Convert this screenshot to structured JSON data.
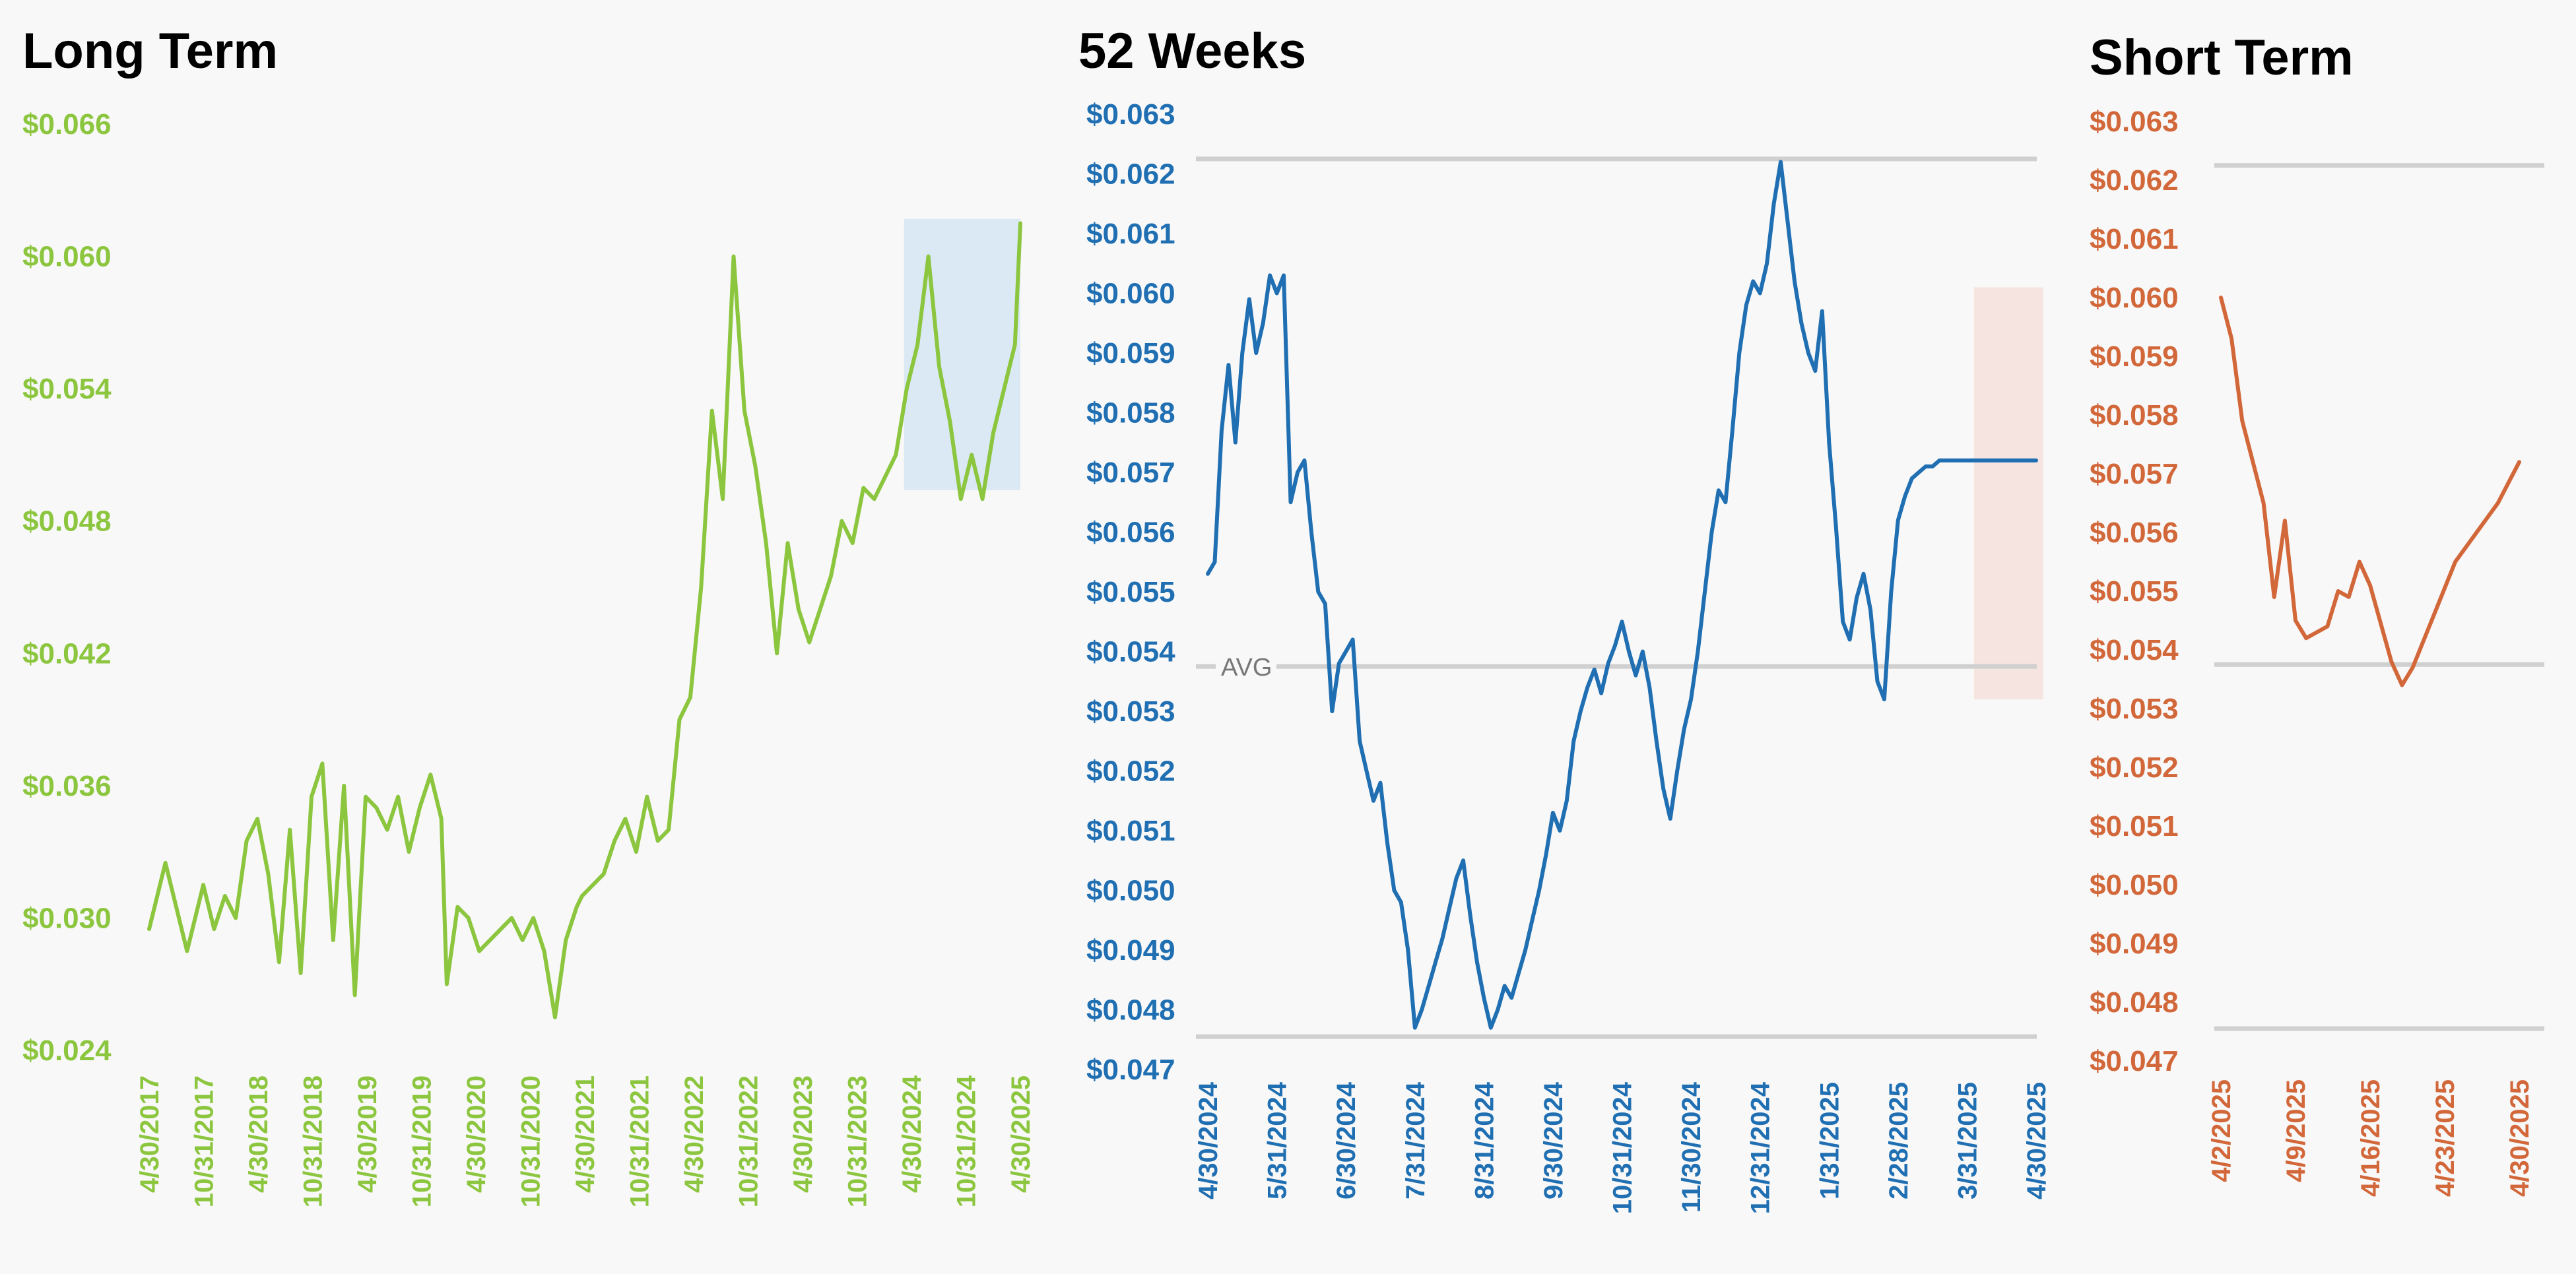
{
  "colors": {
    "long": "#8cc63f",
    "week": "#1f6fb2",
    "short": "#d2673a",
    "gridline": "#d0d0d0",
    "highlight_long": "#dbe9f4",
    "highlight_week": "#f5e4df"
  },
  "chart_data": [
    {
      "type": "line",
      "title": "Long Term",
      "ylim": [
        0.024,
        0.066
      ],
      "yticks": [
        "$0.066",
        "$0.060",
        "$0.054",
        "$0.048",
        "$0.042",
        "$0.036",
        "$0.030",
        "$0.024"
      ],
      "xticks": [
        "4/30/2017",
        "10/31/2017",
        "4/30/2018",
        "10/31/2018",
        "4/30/2019",
        "10/31/2019",
        "4/30/2020",
        "10/31/2020",
        "4/30/2021",
        "10/31/2021",
        "4/30/2022",
        "10/31/2022",
        "4/30/2023",
        "10/31/2023",
        "4/30/2024",
        "10/31/2024",
        "4/30/2025"
      ],
      "x": [
        0,
        0.15,
        0.3,
        0.5,
        0.7,
        1.0,
        1.2,
        1.4,
        1.6,
        1.8,
        2.0,
        2.2,
        2.4,
        2.6,
        2.8,
        3.0,
        3.2,
        3.4,
        3.6,
        3.8,
        4.0,
        4.2,
        4.4,
        4.6,
        4.8,
        5.0,
        5.2,
        5.4,
        5.5,
        5.7,
        5.9,
        6.1,
        6.3,
        6.5,
        6.7,
        6.9,
        7.1,
        7.3,
        7.5,
        7.7,
        7.9,
        8.0,
        8.2,
        8.4,
        8.6,
        8.8,
        9.0,
        9.2,
        9.4,
        9.6,
        9.8,
        10.0,
        10.2,
        10.4,
        10.6,
        10.8,
        11.0,
        11.2,
        11.4,
        11.6,
        11.8,
        12.0,
        12.2,
        12.4,
        12.6,
        12.8,
        13.0,
        13.2,
        13.4,
        13.6,
        13.8,
        14.0,
        14.2,
        14.4,
        14.6,
        14.8,
        15.0,
        15.2,
        15.4,
        15.6,
        15.8,
        16.0,
        16.1
      ],
      "values": [
        0.0295,
        0.031,
        0.0325,
        0.0305,
        0.0285,
        0.0315,
        0.0295,
        0.031,
        0.03,
        0.0335,
        0.0345,
        0.032,
        0.028,
        0.034,
        0.0275,
        0.0355,
        0.037,
        0.029,
        0.036,
        0.0265,
        0.0355,
        0.035,
        0.034,
        0.0355,
        0.033,
        0.035,
        0.0365,
        0.0345,
        0.027,
        0.0305,
        0.03,
        0.0285,
        0.029,
        0.0295,
        0.03,
        0.029,
        0.03,
        0.0285,
        0.0255,
        0.029,
        0.0305,
        0.031,
        0.0315,
        0.032,
        0.0335,
        0.0345,
        0.033,
        0.0355,
        0.0335,
        0.034,
        0.039,
        0.04,
        0.045,
        0.053,
        0.049,
        0.06,
        0.053,
        0.0505,
        0.047,
        0.042,
        0.047,
        0.044,
        0.0425,
        0.044,
        0.0455,
        0.048,
        0.047,
        0.0495,
        0.049,
        0.05,
        0.051,
        0.054,
        0.056,
        0.06,
        0.055,
        0.0525,
        0.049,
        0.051,
        0.049,
        0.052,
        0.054,
        0.056,
        0.0615
      ]
    },
    {
      "type": "line",
      "title": "52 Weeks",
      "ylim": [
        0.047,
        0.063
      ],
      "yticks": [
        "$0.063",
        "$0.062",
        "$0.061",
        "$0.060",
        "$0.059",
        "$0.058",
        "$0.057",
        "$0.056",
        "$0.055",
        "$0.054",
        "$0.053",
        "$0.052",
        "$0.051",
        "$0.050",
        "$0.049",
        "$0.048",
        "$0.047"
      ],
      "xticks": [
        "4/30/2024",
        "5/31/2024",
        "6/30/2024",
        "7/31/2024",
        "8/31/2024",
        "9/30/2024",
        "10/31/2024",
        "11/30/2024",
        "12/31/2024",
        "1/31/2025",
        "2/28/2025",
        "3/31/2025",
        "4/30/2025"
      ],
      "avg_label": "AVG",
      "reference_lines": [
        0.06225,
        0.05375,
        0.04755
      ],
      "x": [
        0,
        0.1,
        0.2,
        0.3,
        0.4,
        0.5,
        0.6,
        0.7,
        0.8,
        0.9,
        1.0,
        1.1,
        1.2,
        1.3,
        1.4,
        1.5,
        1.6,
        1.7,
        1.8,
        1.9,
        2.0,
        2.1,
        2.2,
        2.3,
        2.4,
        2.5,
        2.6,
        2.7,
        2.8,
        2.9,
        3.0,
        3.1,
        3.2,
        3.3,
        3.4,
        3.5,
        3.6,
        3.7,
        3.8,
        3.9,
        4.0,
        4.1,
        4.2,
        4.3,
        4.4,
        4.5,
        4.6,
        4.7,
        4.8,
        4.9,
        5.0,
        5.1,
        5.2,
        5.3,
        5.4,
        5.5,
        5.6,
        5.7,
        5.8,
        5.9,
        6.0,
        6.1,
        6.2,
        6.3,
        6.4,
        6.5,
        6.6,
        6.7,
        6.8,
        6.9,
        7.0,
        7.1,
        7.2,
        7.3,
        7.4,
        7.5,
        7.6,
        7.7,
        7.8,
        7.9,
        8.0,
        8.1,
        8.2,
        8.3,
        8.4,
        8.5,
        8.6,
        8.7,
        8.8,
        8.9,
        9.0,
        9.1,
        9.2,
        9.3,
        9.4,
        9.5,
        9.6,
        9.7,
        9.8,
        9.9,
        10.0,
        10.1,
        10.2,
        10.3,
        10.4,
        10.5,
        10.6,
        10.7,
        10.8,
        10.9,
        11.0,
        11.1,
        11.2,
        11.3,
        11.4,
        11.5,
        11.6,
        11.7,
        11.8,
        11.9,
        12.0
      ],
      "values": [
        0.0553,
        0.0555,
        0.0577,
        0.0588,
        0.0575,
        0.059,
        0.0599,
        0.059,
        0.0595,
        0.0603,
        0.06,
        0.0603,
        0.0565,
        0.057,
        0.0572,
        0.056,
        0.055,
        0.0548,
        0.053,
        0.0538,
        0.054,
        0.0542,
        0.0525,
        0.052,
        0.0515,
        0.0518,
        0.0508,
        0.05,
        0.0498,
        0.049,
        0.0477,
        0.048,
        0.0484,
        0.0488,
        0.0492,
        0.0497,
        0.0502,
        0.0505,
        0.0496,
        0.0488,
        0.0482,
        0.0477,
        0.048,
        0.0484,
        0.0482,
        0.0486,
        0.049,
        0.0495,
        0.05,
        0.0506,
        0.0513,
        0.051,
        0.0515,
        0.0525,
        0.053,
        0.0534,
        0.0537,
        0.0533,
        0.0538,
        0.0541,
        0.0545,
        0.054,
        0.0536,
        0.054,
        0.0534,
        0.0525,
        0.0517,
        0.0512,
        0.052,
        0.0527,
        0.0532,
        0.054,
        0.055,
        0.056,
        0.0567,
        0.0565,
        0.0577,
        0.059,
        0.0598,
        0.0602,
        0.06,
        0.0605,
        0.0615,
        0.0622,
        0.0612,
        0.0602,
        0.0595,
        0.059,
        0.0587,
        0.0597,
        0.0575,
        0.0561,
        0.0545,
        0.0542,
        0.0549,
        0.0553,
        0.0547,
        0.0535,
        0.0532,
        0.055,
        0.0562,
        0.0566,
        0.0569,
        0.057,
        0.0571,
        0.0571,
        0.0572,
        0.0572,
        0.0572,
        0.0572,
        0.0572,
        0.0572,
        0.0572,
        0.0572,
        0.0572,
        0.0572,
        0.0572,
        0.0572,
        0.0572,
        0.0572,
        0.0572
      ]
    },
    {
      "type": "line",
      "title": "Short Term",
      "ylim": [
        0.047,
        0.063
      ],
      "yticks": [
        "$0.063",
        "$0.062",
        "$0.061",
        "$0.060",
        "$0.059",
        "$0.058",
        "$0.057",
        "$0.056",
        "$0.055",
        "$0.054",
        "$0.053",
        "$0.052",
        "$0.051",
        "$0.050",
        "$0.049",
        "$0.048",
        "$0.047"
      ],
      "xticks": [
        "4/2/2025",
        "4/9/2025",
        "4/16/2025",
        "4/23/2025",
        "4/30/2025"
      ],
      "reference_lines": [
        0.06225,
        0.05375,
        0.04755
      ],
      "x": [
        0,
        1,
        2,
        4,
        5,
        6,
        7,
        8,
        10,
        11,
        12,
        13,
        14,
        16,
        17,
        18,
        20,
        22,
        24,
        26,
        28
      ],
      "values": [
        0.06,
        0.0593,
        0.0579,
        0.0565,
        0.0549,
        0.0562,
        0.0545,
        0.0542,
        0.0544,
        0.055,
        0.0549,
        0.0555,
        0.0551,
        0.0538,
        0.0534,
        0.0537,
        0.0546,
        0.0555,
        0.056,
        0.0565,
        0.0572
      ]
    }
  ]
}
